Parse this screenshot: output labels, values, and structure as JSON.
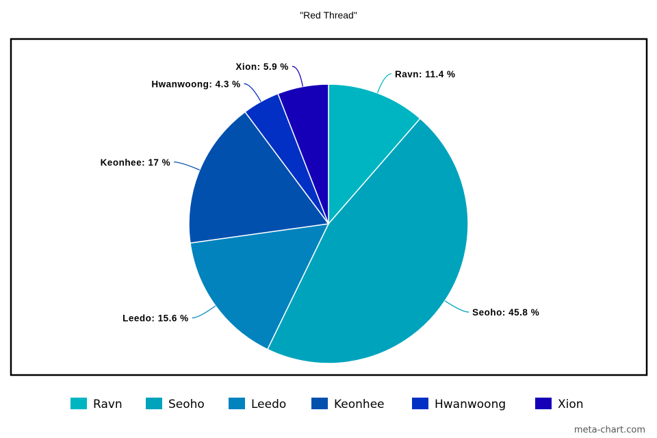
{
  "chart_data": {
    "type": "pie",
    "title": "\"Red Thread\"",
    "slices": [
      {
        "name": "Ravn",
        "value": 11.4,
        "label": "Ravn: 11.4 %",
        "color": "#00B5C2"
      },
      {
        "name": "Seoho",
        "value": 45.8,
        "label": "Seoho: 45.8 %",
        "color": "#00A3BC"
      },
      {
        "name": "Leedo",
        "value": 15.6,
        "label": "Leedo: 15.6 %",
        "color": "#0283BD"
      },
      {
        "name": "Keonhee",
        "value": 17,
        "label": "Keonhee: 17 %",
        "color": "#0150AE"
      },
      {
        "name": "Hwanwoong",
        "value": 4.3,
        "label": "Hwanwoong: 4.3 %",
        "color": "#0230C4"
      },
      {
        "name": "Xion",
        "value": 5.9,
        "label": "Xion: 5.9 %",
        "color": "#1500B8"
      }
    ],
    "legend_position": "bottom",
    "start_angle": "12 o'clock",
    "direction": "clockwise"
  },
  "watermark": "meta-chart.com"
}
